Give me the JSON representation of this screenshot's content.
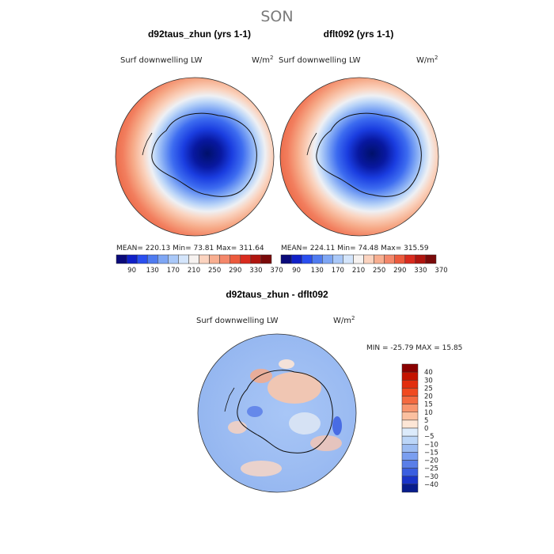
{
  "figure": {
    "season_title": "SON"
  },
  "chart_data": [
    {
      "type": "heatmap",
      "title": "d92taus_zhun (yrs 1-1)",
      "variable": "Surf downwelling LW",
      "units": "W/m",
      "units_exponent": "2",
      "stats": "MEAN= 220.13  Min=   73.81  Max= 311.64",
      "mean": 220.13,
      "min": 73.81,
      "max": 311.64,
      "colorbar_ticks": [
        "90",
        "130",
        "170",
        "210",
        "250",
        "290",
        "330",
        "370"
      ],
      "colorbar_colors": [
        "#0a0a7a",
        "#1020c8",
        "#2a4ff0",
        "#4f7bf0",
        "#7ea6f4",
        "#a9c8f8",
        "#d4e5fb",
        "#f6f2f0",
        "#fbd3bf",
        "#f8ae90",
        "#f4876a",
        "#ec5a3d",
        "#d92b1e",
        "#b0150f",
        "#7a0a0a"
      ],
      "projection": "south-polar stereographic"
    },
    {
      "type": "heatmap",
      "title": "dflt092 (yrs 1-1)",
      "variable": "Surf downwelling LW",
      "units": "W/m",
      "units_exponent": "2",
      "stats": "MEAN= 224.11  Min=   74.48  Max= 315.59",
      "mean": 224.11,
      "min": 74.48,
      "max": 315.59,
      "colorbar_ticks": [
        "90",
        "130",
        "170",
        "210",
        "250",
        "290",
        "330",
        "370"
      ],
      "colorbar_colors": [
        "#0a0a7a",
        "#1020c8",
        "#2a4ff0",
        "#4f7bf0",
        "#7ea6f4",
        "#a9c8f8",
        "#d4e5fb",
        "#f6f2f0",
        "#fbd3bf",
        "#f8ae90",
        "#f4876a",
        "#ec5a3d",
        "#d92b1e",
        "#b0150f",
        "#7a0a0a"
      ],
      "projection": "south-polar stereographic"
    },
    {
      "type": "heatmap",
      "title": "d92taus_zhun - dflt092",
      "variable": "Surf downwelling LW",
      "units": "W/m",
      "units_exponent": "2",
      "stats": "MIN = -25.79 MAX =  15.85",
      "min": -25.79,
      "max": 15.85,
      "colorbar_ticks": [
        "40",
        "30",
        "25",
        "20",
        "15",
        "10",
        "5",
        "0",
        "-5",
        "-10",
        "-15",
        "-20",
        "-25",
        "-30",
        "-40"
      ],
      "colorbar_colors": [
        "#8a0000",
        "#c41400",
        "#e22e0e",
        "#f04a20",
        "#f46a40",
        "#f8956e",
        "#fbc0a0",
        "#fde6d6",
        "#dcebfb",
        "#bcd6f8",
        "#9cbcf2",
        "#7a9ef0",
        "#5a7ee8",
        "#3a5ee0",
        "#1a34c8",
        "#081c8c"
      ],
      "projection": "south-polar stereographic"
    }
  ]
}
